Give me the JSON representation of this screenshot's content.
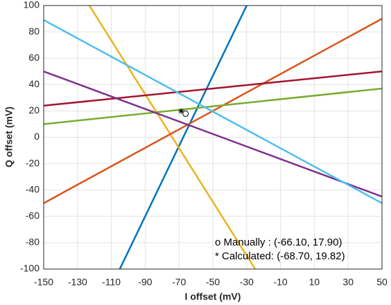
{
  "chart_data": {
    "type": "line",
    "xlabel": "I offset (mV)",
    "ylabel": "Q offset (mV)",
    "xlim": [
      -150,
      50
    ],
    "xticks": [
      -150,
      -130,
      -110,
      -90,
      -70,
      -50,
      -30,
      -10,
      10,
      30,
      50
    ],
    "ylim": [
      -100,
      100
    ],
    "yticks": [
      -100,
      -80,
      -60,
      -40,
      -20,
      0,
      20,
      40,
      60,
      80,
      100
    ],
    "grid": true,
    "series": [
      {
        "color": "#0072BD",
        "x": [
          -105,
          -30
        ],
        "values": [
          -100,
          100
        ]
      },
      {
        "color": "#EDB120",
        "x": [
          -123,
          -25
        ],
        "values": [
          100,
          -100
        ]
      },
      {
        "color": "#D95319",
        "x": [
          -150,
          50
        ],
        "values": [
          -50,
          90
        ]
      },
      {
        "color": "#A2142F",
        "x": [
          -150,
          50
        ],
        "values": [
          24,
          50
        ]
      },
      {
        "color": "#77AC30",
        "x": [
          -150,
          50
        ],
        "values": [
          10,
          37
        ]
      },
      {
        "color": "#7E2F8E",
        "x": [
          -150,
          50
        ],
        "values": [
          50,
          -45
        ]
      },
      {
        "color": "#4DBEEE",
        "x": [
          -150,
          50
        ],
        "values": [
          89,
          -50
        ]
      }
    ],
    "markers": [
      {
        "symbol": "o",
        "x": -66.1,
        "y": 17.9
      },
      {
        "symbol": "*",
        "x": -68.7,
        "y": 19.82
      }
    ],
    "annotations": [
      "o Manually : (-66.10, 17.90)",
      "* Calculated: (-68.70, 19.82)"
    ]
  }
}
